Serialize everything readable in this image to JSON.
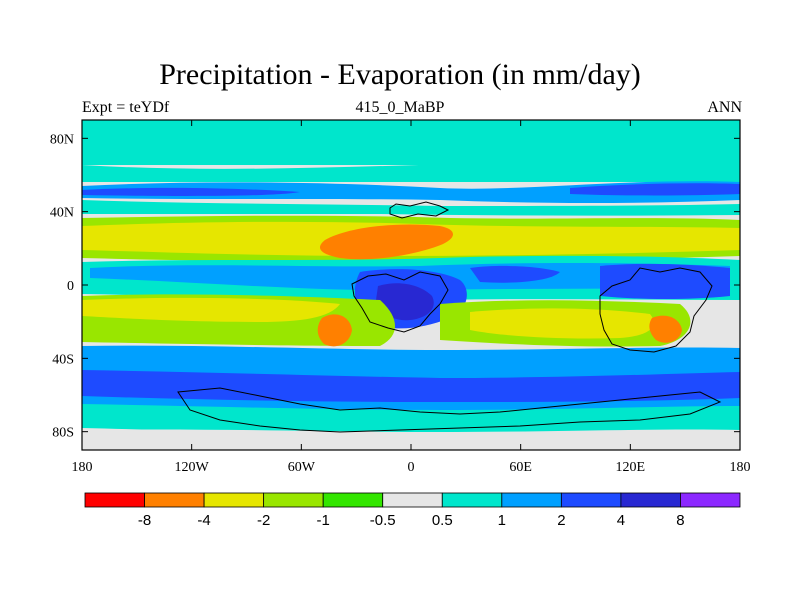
{
  "chart_data": {
    "type": "heatmap",
    "title": "Precipitation - Evaporation (in mm/day)",
    "left_label": "Expt = teYDf",
    "center_label": "415_0_MaBP",
    "right_label": "ANN",
    "x_ticks": [
      {
        "value": -180,
        "label": "180"
      },
      {
        "value": -120,
        "label": "120W"
      },
      {
        "value": -60,
        "label": "60W"
      },
      {
        "value": 0,
        "label": "0"
      },
      {
        "value": 60,
        "label": "60E"
      },
      {
        "value": 120,
        "label": "120E"
      },
      {
        "value": 180,
        "label": "180"
      }
    ],
    "y_ticks": [
      {
        "value": 80,
        "label": "80N"
      },
      {
        "value": 40,
        "label": "40N"
      },
      {
        "value": 0,
        "label": "0"
      },
      {
        "value": -40,
        "label": "40S"
      },
      {
        "value": -80,
        "label": "80S"
      }
    ],
    "xlim": [
      -180,
      180
    ],
    "ylim": [
      -90,
      90
    ],
    "colorbar": {
      "levels": [
        "-8",
        "-4",
        "-2",
        "-1",
        "-0.5",
        "0.5",
        "1",
        "2",
        "4",
        "8"
      ],
      "colors": [
        "#ff0000",
        "#ff8000",
        "#e6e600",
        "#99e600",
        "#33e600",
        "#e6e6e6",
        "#00e6cc",
        "#00a0ff",
        "#1e4bff",
        "#2828d2",
        "#8c28ff"
      ]
    }
  }
}
